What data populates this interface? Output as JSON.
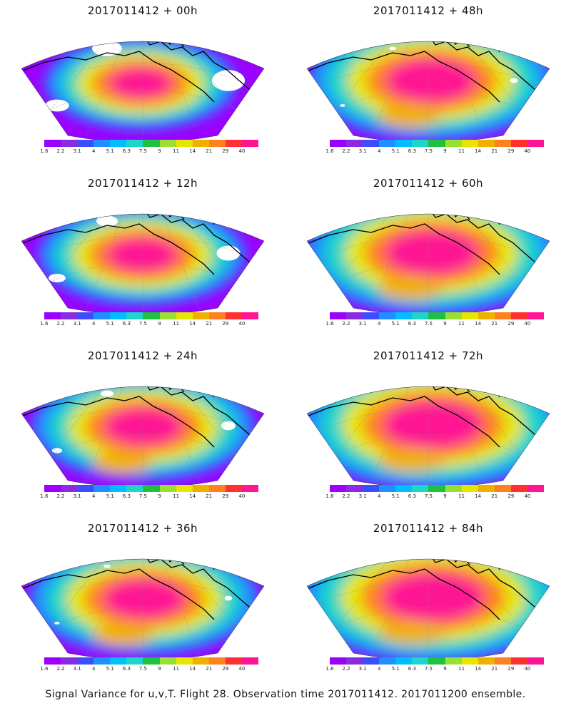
{
  "panels": [
    {
      "title": "2017011412 + 00h",
      "intensity": 0.35,
      "missing": 0.35
    },
    {
      "title": "2017011412 + 48h",
      "intensity": 0.7,
      "missing": 0.08
    },
    {
      "title": "2017011412 + 12h",
      "intensity": 0.45,
      "missing": 0.25
    },
    {
      "title": "2017011412 + 60h",
      "intensity": 0.75,
      "missing": 0.0
    },
    {
      "title": "2017011412 + 24h",
      "intensity": 0.55,
      "missing": 0.15
    },
    {
      "title": "2017011412 + 72h",
      "intensity": 0.82,
      "missing": 0.0
    },
    {
      "title": "2017011412 + 36h",
      "intensity": 0.6,
      "missing": 0.08
    },
    {
      "title": "2017011412 + 84h",
      "intensity": 0.85,
      "missing": 0.0
    }
  ],
  "colorbar": {
    "labels": [
      "1.6",
      "2.2",
      "3.1",
      "4",
      "5.1",
      "6.3",
      "7.5",
      "9",
      "11",
      "14",
      "21",
      "29",
      "40"
    ],
    "colors": [
      "#9b00ff",
      "#8a2be2",
      "#3c4cff",
      "#1e90ff",
      "#00bfff",
      "#1ed6c8",
      "#20c040",
      "#99e033",
      "#e6e600",
      "#f0b000",
      "#ff8020",
      "#ff3030",
      "#ff1493"
    ]
  },
  "footer": {
    "caption": "Signal Variance for u,v,T. Flight 28. Observation time 2017011412. 2017011200 ensemble."
  }
}
